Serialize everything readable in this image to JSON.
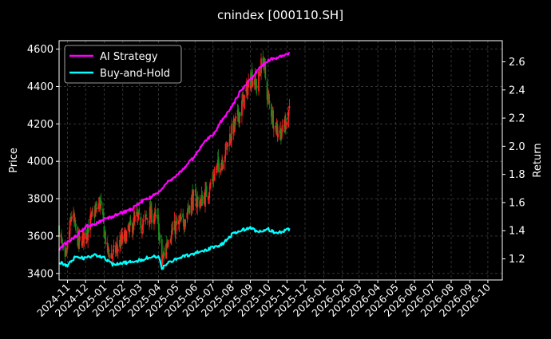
{
  "chart_data": {
    "type": "line",
    "title": "cnindex [000110.SH]",
    "ylabel": "Price",
    "y2label": "Return",
    "ylim": [
      3365,
      4645
    ],
    "y2lim": [
      1.05,
      2.75
    ],
    "yticks": [
      3400,
      3600,
      3800,
      4000,
      4200,
      4400,
      4600
    ],
    "y2ticks": [
      1.2,
      1.4,
      1.6,
      1.8,
      2.0,
      2.2,
      2.4,
      2.6
    ],
    "y2tick_labels": [
      "1.2",
      "1.4",
      "1.6",
      "1.8",
      "2.0",
      "2.2",
      "2.4",
      "2.6"
    ],
    "xlim": [
      "2024-10-18",
      "2026-10-25"
    ],
    "xticks": [
      "2024-11",
      "2024-12",
      "2025-01",
      "2025-02",
      "2025-03",
      "2025-04",
      "2025-05",
      "2025-06",
      "2025-07",
      "2025-08",
      "2025-09",
      "2025-10",
      "2025-11",
      "2025-12",
      "2026-01",
      "2026-02",
      "2026-03",
      "2026-04",
      "2026-05",
      "2026-06",
      "2026-07",
      "2026-08",
      "2026-09",
      "2026-10"
    ],
    "grid": true,
    "legend": "top-left",
    "colors": {
      "background": "#000000",
      "grid": "#555555",
      "up_candle": "#ff2020",
      "down_candle": "#1a8a1a",
      "ai_strategy": "#ff00ff",
      "buy_and_hold": "#00ffff"
    },
    "price_anchors": {
      "dates": [
        "2024-10-18",
        "2024-10-28",
        "2024-11-08",
        "2024-11-20",
        "2024-12-02",
        "2024-12-12",
        "2024-12-25",
        "2025-01-06",
        "2025-01-15",
        "2025-01-27",
        "2025-02-10",
        "2025-02-24",
        "2025-03-05",
        "2025-03-18",
        "2025-03-31",
        "2025-04-07",
        "2025-04-18",
        "2025-04-30",
        "2025-05-13",
        "2025-05-27",
        "2025-06-10",
        "2025-06-24",
        "2025-07-07",
        "2025-07-18",
        "2025-07-31",
        "2025-08-12",
        "2025-08-22",
        "2025-09-03",
        "2025-09-12",
        "2025-09-22",
        "2025-09-30",
        "2025-10-13",
        "2025-10-24",
        "2025-11-05"
      ],
      "close": [
        3640,
        3450,
        3720,
        3560,
        3620,
        3700,
        3780,
        3520,
        3500,
        3560,
        3620,
        3700,
        3660,
        3720,
        3680,
        3460,
        3600,
        3650,
        3680,
        3800,
        3780,
        3850,
        3960,
        4020,
        4150,
        4240,
        4340,
        4460,
        4400,
        4560,
        4340,
        4180,
        4150,
        4290
      ]
    },
    "series": [
      {
        "name": "AI Strategy",
        "x": [
          "2024-10-18",
          "2024-11-01",
          "2024-11-15",
          "2024-12-01",
          "2024-12-15",
          "2025-01-01",
          "2025-01-15",
          "2025-02-01",
          "2025-02-15",
          "2025-03-01",
          "2025-03-15",
          "2025-04-01",
          "2025-04-15",
          "2025-05-01",
          "2025-05-15",
          "2025-06-01",
          "2025-06-15",
          "2025-07-01",
          "2025-07-15",
          "2025-08-01",
          "2025-08-15",
          "2025-09-01",
          "2025-09-15",
          "2025-10-01",
          "2025-10-15",
          "2025-11-05"
        ],
        "values": [
          1.27,
          1.32,
          1.36,
          1.43,
          1.44,
          1.48,
          1.5,
          1.53,
          1.55,
          1.6,
          1.63,
          1.67,
          1.74,
          1.79,
          1.85,
          1.93,
          2.03,
          2.08,
          2.18,
          2.28,
          2.39,
          2.47,
          2.55,
          2.61,
          2.63,
          2.66
        ]
      },
      {
        "name": "Buy-and-Hold",
        "x": [
          "2024-10-18",
          "2024-11-01",
          "2024-11-15",
          "2024-12-01",
          "2024-12-15",
          "2025-01-01",
          "2025-01-15",
          "2025-02-01",
          "2025-02-15",
          "2025-03-01",
          "2025-03-15",
          "2025-04-01",
          "2025-04-07",
          "2025-04-15",
          "2025-05-01",
          "2025-05-15",
          "2025-06-01",
          "2025-06-15",
          "2025-07-01",
          "2025-07-15",
          "2025-08-01",
          "2025-08-15",
          "2025-09-01",
          "2025-09-15",
          "2025-10-01",
          "2025-10-15",
          "2025-11-05"
        ],
        "values": [
          1.18,
          1.15,
          1.22,
          1.2,
          1.23,
          1.21,
          1.16,
          1.17,
          1.18,
          1.19,
          1.21,
          1.22,
          1.13,
          1.17,
          1.2,
          1.22,
          1.24,
          1.26,
          1.28,
          1.3,
          1.37,
          1.4,
          1.42,
          1.39,
          1.41,
          1.38,
          1.41
        ]
      }
    ]
  }
}
